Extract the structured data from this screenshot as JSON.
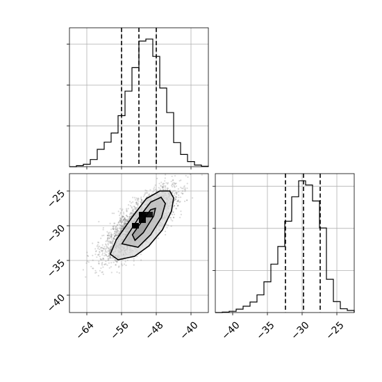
{
  "chart_data": [
    {
      "type": "histogram",
      "panel": "top-left",
      "xlim": [
        -68,
        -36
      ],
      "ylim": [
        0,
        0.068
      ],
      "bin_edges": [
        -68,
        -66.4,
        -64.8,
        -63.2,
        -61.6,
        -60,
        -58.4,
        -56.8,
        -55.2,
        -53.6,
        -52,
        -50.4,
        -48.8,
        -47.2,
        -45.6,
        -44,
        -42.4,
        -40.8,
        -39.2,
        -37.6,
        -36
      ],
      "counts": [
        0,
        0.0005,
        0.0012,
        0.0035,
        0.0085,
        0.012,
        0.0165,
        0.025,
        0.037,
        0.0485,
        0.0615,
        0.0625,
        0.054,
        0.0385,
        0.0265,
        0.0118,
        0.006,
        0.0025,
        0.0008,
        0.0002
      ],
      "yticks": [
        0.02,
        0.04,
        0.06
      ],
      "quantiles": [
        -56.0,
        -52.0,
        -48.0
      ],
      "grid": true
    },
    {
      "type": "histogram2d",
      "panel": "bottom-left",
      "xlim": [
        -68,
        -36
      ],
      "ylim": [
        -42.5,
        -22.5
      ],
      "xticks": [
        -64,
        -56,
        -48,
        -40
      ],
      "xtick_labels": [
        "−64",
        "−56",
        "−48",
        "−40"
      ],
      "yticks": [
        -25,
        -30,
        -35,
        -40
      ],
      "ytick_labels": [
        "−25",
        "−30",
        "−35",
        "−40"
      ],
      "density": {
        "mean": [
          -51.8,
          -29.8
        ],
        "sd": [
          4.0,
          2.5
        ],
        "rho": 0.78
      },
      "contours": [
        [
          [
            -53.5,
            -31.3
          ],
          [
            -50.9,
            -29.0
          ],
          [
            -49.3,
            -27.7
          ],
          [
            -48.2,
            -27.5
          ],
          [
            -48.6,
            -28.6
          ],
          [
            -51.0,
            -31.0
          ],
          [
            -52.9,
            -32.1
          ]
        ],
        [
          [
            -55.9,
            -32.6
          ],
          [
            -52.2,
            -29.0
          ],
          [
            -49.3,
            -26.6
          ],
          [
            -46.9,
            -25.9
          ],
          [
            -45.9,
            -26.8
          ],
          [
            -46.8,
            -28.8
          ],
          [
            -49.3,
            -31.3
          ],
          [
            -52.2,
            -33.1
          ]
        ],
        [
          [
            -58.6,
            -34.1
          ],
          [
            -57.2,
            -32.0
          ],
          [
            -53.6,
            -28.8
          ],
          [
            -50.3,
            -26.1
          ],
          [
            -47.2,
            -25.0
          ],
          [
            -44.9,
            -25.0
          ],
          [
            -44.0,
            -26.0
          ],
          [
            -44.5,
            -27.9
          ],
          [
            -46.6,
            -30.6
          ],
          [
            -49.7,
            -32.9
          ],
          [
            -53.0,
            -34.4
          ],
          [
            -56.8,
            -34.9
          ]
        ]
      ],
      "dark_cells": [
        {
          "x": -53.6,
          "y": -30.4,
          "density": 1.0
        },
        {
          "x": -52.0,
          "y": -29.6,
          "density": 0.9
        },
        {
          "x": -52.0,
          "y": -28.8,
          "density": 0.95
        },
        {
          "x": -50.4,
          "y": -28.8,
          "density": 0.7
        }
      ],
      "grid": true
    },
    {
      "type": "histogram",
      "panel": "bottom-right",
      "xlim": [
        -42.5,
        -22.5
      ],
      "ylim": [
        0,
        0.165
      ],
      "bin_edges": [
        -42.5,
        -41.5,
        -40.5,
        -39.5,
        -38.5,
        -37.5,
        -36.5,
        -35.5,
        -34.5,
        -33.5,
        -32.5,
        -31.5,
        -30.5,
        -29.5,
        -28.5,
        -27.5,
        -26.5,
        -25.5,
        -24.5,
        -23.5,
        -22.5
      ],
      "counts": [
        0,
        0.0005,
        0.0015,
        0.004,
        0.0075,
        0.0125,
        0.021,
        0.0365,
        0.0575,
        0.0785,
        0.1085,
        0.1375,
        0.1565,
        0.1515,
        0.1325,
        0.1005,
        0.0395,
        0.013,
        0.0045,
        0.0025
      ],
      "xticks": [
        -40,
        -35,
        -30,
        -25
      ],
      "xtick_labels": [
        "−40",
        "−35",
        "−30",
        "−25"
      ],
      "yticks": [
        0.05,
        0.1,
        0.15
      ],
      "quantiles": [
        -32.4,
        -29.8,
        -27.4
      ],
      "grid": true
    }
  ]
}
